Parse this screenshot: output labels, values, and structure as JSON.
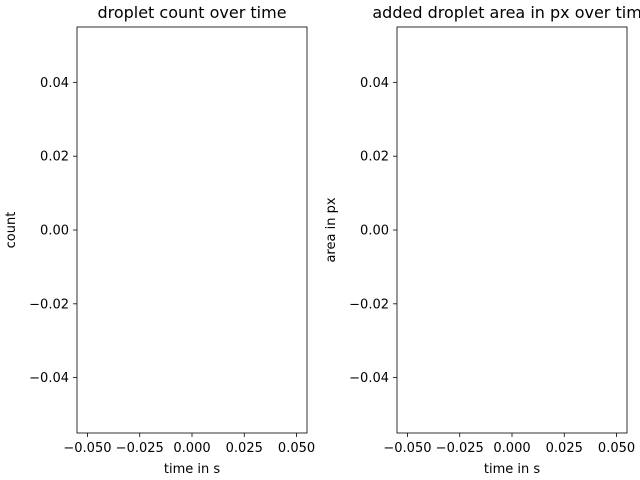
{
  "chart_data": [
    {
      "type": "line",
      "title": "droplet count over time",
      "xlabel": "time in s",
      "ylabel": "count",
      "x": [],
      "series": [],
      "xlim": [
        -0.055,
        0.055
      ],
      "ylim": [
        -0.055,
        0.055
      ],
      "xticks": [
        -0.05,
        -0.025,
        0,
        0.025,
        0.05
      ],
      "xtick_labels": [
        "−0.050",
        "−0.025",
        "0.000",
        "0.025",
        "0.050"
      ],
      "yticks": [
        -0.04,
        -0.02,
        0,
        0.02,
        0.04
      ],
      "ytick_labels": [
        "−0.04",
        "−0.02",
        "0.00",
        "0.02",
        "0.04"
      ],
      "grid": false
    },
    {
      "type": "line",
      "title": "added droplet area in px over time",
      "xlabel": "time in s",
      "ylabel": "area in px",
      "x": [],
      "series": [],
      "xlim": [
        -0.055,
        0.055
      ],
      "ylim": [
        -0.055,
        0.055
      ],
      "xticks": [
        -0.05,
        -0.025,
        0,
        0.025,
        0.05
      ],
      "xtick_labels": [
        "−0.050",
        "−0.025",
        "0.000",
        "0.025",
        "0.050"
      ],
      "yticks": [
        -0.04,
        -0.02,
        0,
        0.02,
        0.04
      ],
      "ytick_labels": [
        "−0.04",
        "−0.02",
        "0.00",
        "0.02",
        "0.04"
      ],
      "grid": false
    }
  ]
}
